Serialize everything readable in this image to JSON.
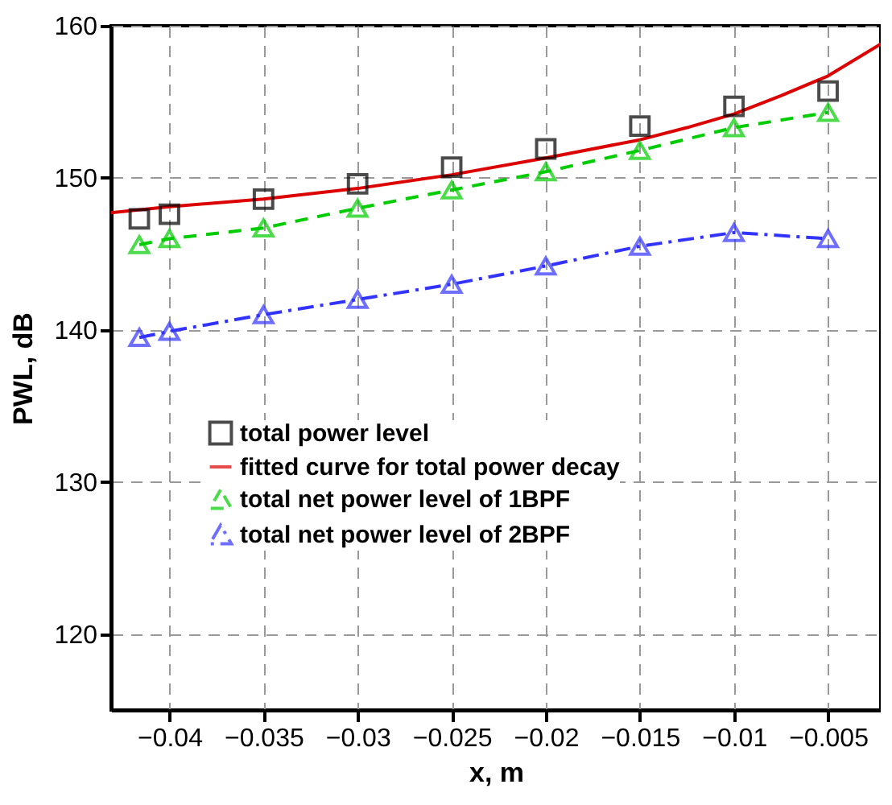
{
  "chart_data": {
    "type": "line",
    "xlabel": "x, m",
    "ylabel": "PWL, dB",
    "xlim": [
      -0.0431,
      -0.0022
    ],
    "ylim": [
      115,
      160
    ],
    "xticks": [
      -0.04,
      -0.035,
      -0.03,
      -0.025,
      -0.02,
      -0.015,
      -0.01,
      -0.005
    ],
    "yticks": [
      120,
      130,
      140,
      150,
      160
    ],
    "grid": true,
    "legend": "left",
    "x": [
      -0.0416,
      -0.04,
      -0.035,
      -0.03,
      -0.025,
      -0.02,
      -0.015,
      -0.01,
      -0.005
    ],
    "series": [
      {
        "name": "total power level",
        "type": "scatter",
        "marker": "square",
        "color": "#000000",
        "values": [
          147.3,
          147.6,
          148.6,
          149.6,
          150.7,
          151.9,
          153.4,
          154.7,
          155.7
        ]
      },
      {
        "name": "fitted curve for total power decay",
        "type": "line",
        "marker": "none",
        "line_style": "solid",
        "color": "#dd0000",
        "x": [
          -0.0431,
          -0.04,
          -0.035,
          -0.03,
          -0.025,
          -0.02,
          -0.015,
          -0.0125,
          -0.01,
          -0.0075,
          -0.005,
          -0.0022
        ],
        "values": [
          147.7,
          148.1,
          148.6,
          149.3,
          150.2,
          151.3,
          152.5,
          153.3,
          154.2,
          155.4,
          156.7,
          158.8
        ]
      },
      {
        "name": "total net power level of 1BPF",
        "type": "line",
        "marker": "triangle",
        "line_style": "dashed",
        "color": "#00cc00",
        "values": [
          145.6,
          146.0,
          146.7,
          148.0,
          149.2,
          150.4,
          151.8,
          153.3,
          154.3
        ]
      },
      {
        "name": "total net power level of 2BPF",
        "type": "line",
        "marker": "triangle",
        "line_style": "dashdot",
        "color": "#3333ff",
        "values": [
          139.5,
          139.9,
          141.0,
          142.0,
          143.0,
          144.2,
          145.5,
          146.4,
          146.0
        ]
      }
    ]
  }
}
